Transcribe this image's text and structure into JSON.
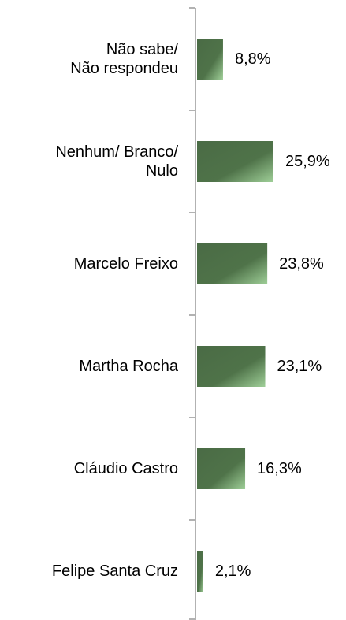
{
  "chart_data": {
    "type": "bar",
    "orientation": "horizontal",
    "categories": [
      "Não sabe/\nNão respondeu",
      "Nenhum/ Branco/\nNulo",
      "Marcelo Freixo",
      "Martha Rocha",
      "Cláudio Castro",
      "Felipe Santa Cruz"
    ],
    "values": [
      8.8,
      25.9,
      23.8,
      23.1,
      16.3,
      2.1
    ],
    "value_labels": [
      "8,8%",
      "25,9%",
      "23,8%",
      "23,1%",
      "16,3%",
      "2,1%"
    ],
    "color": "#4a6b45"
  }
}
